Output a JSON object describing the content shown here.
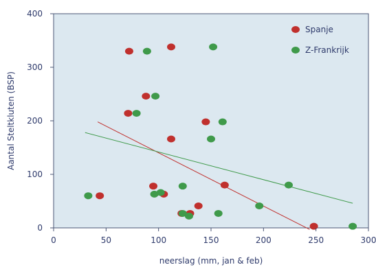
{
  "chart_data": {
    "type": "scatter",
    "title": "",
    "xlabel": "neerslag (mm, jan & feb)",
    "ylabel": "Aantal Steltkluten (BSP)",
    "xlim": [
      0,
      300
    ],
    "ylim": [
      0,
      400
    ],
    "xticks": [
      0,
      50,
      100,
      150,
      200,
      250,
      300
    ],
    "yticks": [
      0,
      100,
      200,
      300,
      400
    ],
    "grid": false,
    "legend_position": "top-right",
    "background_color": "#dce8f0",
    "series": [
      {
        "name": "Spanje",
        "color": "#c0302d",
        "points": [
          {
            "x": 44,
            "y": 60
          },
          {
            "x": 71,
            "y": 214
          },
          {
            "x": 72,
            "y": 330
          },
          {
            "x": 88,
            "y": 246
          },
          {
            "x": 95,
            "y": 78
          },
          {
            "x": 105,
            "y": 63
          },
          {
            "x": 112,
            "y": 338
          },
          {
            "x": 112,
            "y": 166
          },
          {
            "x": 122,
            "y": 27
          },
          {
            "x": 130,
            "y": 27
          },
          {
            "x": 138,
            "y": 41
          },
          {
            "x": 145,
            "y": 198
          },
          {
            "x": 163,
            "y": 80
          },
          {
            "x": 248,
            "y": 3
          }
        ],
        "trendline": {
          "x": [
            42,
            244
          ],
          "y": [
            198,
            -3
          ]
        }
      },
      {
        "name": "Z-Frankrijk",
        "color": "#3f9a4a",
        "points": [
          {
            "x": 33,
            "y": 60
          },
          {
            "x": 79,
            "y": 214
          },
          {
            "x": 89,
            "y": 330
          },
          {
            "x": 96,
            "y": 63
          },
          {
            "x": 97,
            "y": 246
          },
          {
            "x": 102,
            "y": 66
          },
          {
            "x": 123,
            "y": 78
          },
          {
            "x": 123,
            "y": 27
          },
          {
            "x": 129,
            "y": 22
          },
          {
            "x": 150,
            "y": 166
          },
          {
            "x": 152,
            "y": 338
          },
          {
            "x": 157,
            "y": 27
          },
          {
            "x": 161,
            "y": 198
          },
          {
            "x": 196,
            "y": 41
          },
          {
            "x": 224,
            "y": 80
          },
          {
            "x": 285,
            "y": 3
          }
        ],
        "trendline": {
          "x": [
            30,
            285
          ],
          "y": [
            178,
            46
          ]
        }
      }
    ]
  }
}
